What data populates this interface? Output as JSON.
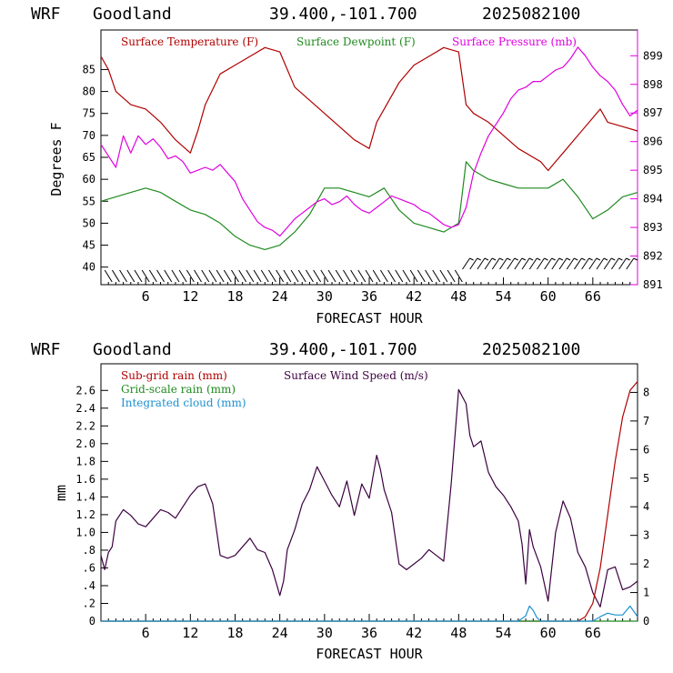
{
  "colors": {
    "temperature": "#b00000",
    "dewpoint": "#1e8a1e",
    "pressure": "#e000e0",
    "subgrid_rain": "#b00000",
    "grid_rain": "#1e8a1e",
    "cloud": "#1e90d0",
    "wind": "#3c0040",
    "axis": "#000000"
  },
  "chart_data": [
    {
      "type": "line",
      "header": {
        "model": "WRF",
        "site": "Goodland",
        "coords": "39.400,-101.700",
        "run": "2025082100"
      },
      "xlabel": "FORECAST HOUR",
      "ylabel": "Degrees F",
      "xlim": [
        0,
        72
      ],
      "xticks": [
        "6",
        "12",
        "18",
        "24",
        "30",
        "36",
        "42",
        "48",
        "54",
        "60",
        "66"
      ],
      "ylim": [
        36,
        94
      ],
      "yticks": [
        "40",
        "45",
        "50",
        "55",
        "60",
        "65",
        "70",
        "75",
        "80",
        "85"
      ],
      "y2lim": [
        891,
        899.9
      ],
      "y2ticks": [
        "891",
        "892",
        "893",
        "894",
        "895",
        "896",
        "897",
        "898",
        "899"
      ],
      "legend": [
        "Surface Temperature (F)",
        "Surface Dewpoint (F)",
        "Surface Pressure (mb)"
      ],
      "series": [
        {
          "name": "Surface Temperature (F)",
          "axis": "left",
          "x": [
            0,
            1,
            2,
            4,
            6,
            8,
            10,
            12,
            13,
            14,
            16,
            18,
            20,
            22,
            24,
            26,
            28,
            30,
            32,
            34,
            35,
            36,
            37,
            38,
            40,
            42,
            44,
            46,
            48,
            49,
            50,
            52,
            54,
            56,
            58,
            59,
            60,
            61,
            62,
            64,
            66,
            67,
            68,
            70,
            72
          ],
          "y": [
            88,
            85,
            80,
            77,
            76,
            73,
            69,
            66,
            71,
            77,
            84,
            86,
            88,
            90,
            89,
            81,
            78,
            75,
            72,
            69,
            68,
            67,
            73,
            76,
            82,
            86,
            88,
            90,
            89,
            77,
            75,
            73,
            70,
            67,
            65,
            64,
            62,
            64,
            66,
            70,
            74,
            76,
            73,
            72,
            71
          ]
        },
        {
          "name": "Surface Dewpoint (F)",
          "axis": "left",
          "x": [
            0,
            2,
            4,
            6,
            8,
            10,
            12,
            14,
            16,
            18,
            20,
            22,
            24,
            26,
            28,
            30,
            32,
            34,
            36,
            38,
            40,
            42,
            44,
            46,
            48,
            49,
            50,
            52,
            54,
            56,
            58,
            60,
            62,
            64,
            66,
            68,
            70,
            72
          ],
          "y": [
            55,
            56,
            57,
            58,
            57,
            55,
            53,
            52,
            50,
            47,
            45,
            44,
            45,
            48,
            52,
            58,
            58,
            57,
            56,
            58,
            53,
            50,
            49,
            48,
            50,
            64,
            62,
            60,
            59,
            58,
            58,
            58,
            60,
            56,
            51,
            53,
            56,
            57
          ]
        },
        {
          "name": "Surface Pressure (mb)",
          "axis": "right",
          "x": [
            0,
            1,
            2,
            3,
            4,
            5,
            6,
            7,
            8,
            9,
            10,
            11,
            12,
            13,
            14,
            15,
            16,
            17,
            18,
            19,
            20,
            21,
            22,
            23,
            24,
            25,
            26,
            27,
            28,
            29,
            30,
            31,
            32,
            33,
            34,
            35,
            36,
            37,
            38,
            39,
            40,
            41,
            42,
            43,
            44,
            45,
            46,
            47,
            48,
            49,
            50,
            51,
            52,
            53,
            54,
            55,
            56,
            57,
            58,
            59,
            60,
            61,
            62,
            63,
            64,
            65,
            66,
            67,
            68,
            69,
            70,
            71,
            72
          ],
          "y": [
            895.9,
            895.5,
            895.1,
            896.2,
            895.6,
            896.2,
            895.9,
            896.1,
            895.8,
            895.4,
            895.5,
            895.3,
            894.9,
            895.0,
            895.1,
            895.0,
            895.2,
            894.9,
            894.6,
            894.0,
            893.6,
            893.2,
            893.0,
            892.9,
            892.7,
            893.0,
            893.3,
            893.5,
            893.7,
            893.9,
            894.0,
            893.8,
            893.9,
            894.1,
            893.8,
            893.6,
            893.5,
            893.7,
            893.9,
            894.1,
            894.0,
            893.9,
            893.8,
            893.6,
            893.5,
            893.3,
            893.1,
            893.0,
            893.1,
            893.7,
            894.9,
            895.6,
            896.2,
            896.6,
            897.0,
            897.5,
            897.8,
            897.9,
            898.1,
            898.1,
            898.3,
            898.5,
            898.6,
            898.9,
            899.3,
            899.0,
            898.6,
            898.3,
            898.1,
            897.8,
            897.3,
            896.9,
            897.1
          ]
        }
      ]
    },
    {
      "type": "line",
      "header": {
        "model": "WRF",
        "site": "Goodland",
        "coords": "39.400,-101.700",
        "run": "2025082100"
      },
      "xlabel": "FORECAST HOUR",
      "ylabel": "mm",
      "xlim": [
        0,
        72
      ],
      "xticks": [
        "6",
        "12",
        "18",
        "24",
        "30",
        "36",
        "42",
        "48",
        "54",
        "60",
        "66"
      ],
      "ylim": [
        0,
        2.9
      ],
      "yticks": [
        "0",
        ".2",
        ".4",
        ".6",
        ".8",
        "1.0",
        "1.2",
        "1.4",
        "1.6",
        "1.8",
        "2.0",
        "2.2",
        "2.4",
        "2.6"
      ],
      "y2lim": [
        0,
        9
      ],
      "y2ticks": [
        "0",
        "1",
        "2",
        "3",
        "4",
        "5",
        "6",
        "7",
        "8"
      ],
      "legend": [
        "Sub-grid rain (mm)",
        "Grid-scale rain (mm)",
        "Integrated cloud (mm)",
        "Surface Wind Speed (m/s)"
      ],
      "series": [
        {
          "name": "Surface Wind Speed (m/s)",
          "axis": "right",
          "x": [
            0,
            0.5,
            1,
            1.5,
            2,
            3,
            4,
            5,
            6,
            7,
            8,
            9,
            10,
            11,
            12,
            13,
            14,
            15,
            16,
            17,
            18,
            19,
            20,
            21,
            22,
            23,
            24,
            24.5,
            25,
            26,
            27,
            28,
            29,
            30,
            31,
            32,
            33,
            34,
            35,
            36,
            37,
            37.5,
            38,
            39,
            40,
            41,
            42,
            43,
            44,
            45,
            46,
            47,
            48,
            49,
            49.5,
            50,
            51,
            52,
            53,
            54,
            55,
            56,
            56.5,
            57,
            57.5,
            58,
            59,
            60,
            61,
            62,
            63,
            64,
            65,
            66,
            67,
            68,
            69,
            70,
            71,
            72
          ],
          "y": [
            2.3,
            1.8,
            2.4,
            2.6,
            3.5,
            3.9,
            3.7,
            3.4,
            3.3,
            3.6,
            3.9,
            3.8,
            3.6,
            4.0,
            4.4,
            4.7,
            4.8,
            4.1,
            2.3,
            2.2,
            2.3,
            2.6,
            2.9,
            2.5,
            2.4,
            1.8,
            0.9,
            1.4,
            2.5,
            3.2,
            4.1,
            4.6,
            5.4,
            4.9,
            4.4,
            4.0,
            4.9,
            3.7,
            4.8,
            4.3,
            5.8,
            5.3,
            4.6,
            3.8,
            2.0,
            1.8,
            2.0,
            2.2,
            2.5,
            2.3,
            2.1,
            4.8,
            8.1,
            7.6,
            6.5,
            6.1,
            6.3,
            5.2,
            4.7,
            4.4,
            4.0,
            3.5,
            2.7,
            1.3,
            3.2,
            2.6,
            1.9,
            0.7,
            3.1,
            4.2,
            3.6,
            2.4,
            1.9,
            1.0,
            0.5,
            1.8,
            1.9,
            1.1,
            1.2,
            1.4
          ]
        },
        {
          "name": "Sub-grid rain (mm)",
          "axis": "left",
          "x": [
            0,
            64,
            65,
            66,
            67,
            68,
            69,
            70,
            71,
            72
          ],
          "y": [
            0,
            0,
            0.05,
            0.2,
            0.6,
            1.2,
            1.8,
            2.3,
            2.6,
            2.7
          ]
        },
        {
          "name": "Grid-scale rain (mm)",
          "axis": "left",
          "x": [
            0,
            72
          ],
          "y": [
            0,
            0
          ]
        },
        {
          "name": "Integrated cloud (mm)",
          "axis": "left",
          "x": [
            0,
            56,
            57,
            57.5,
            58,
            58.5,
            59,
            66,
            67,
            68,
            69,
            70,
            71,
            72
          ],
          "y": [
            0,
            0,
            0.06,
            0.17,
            0.12,
            0.04,
            0,
            0,
            0.05,
            0.09,
            0.07,
            0.07,
            0.17,
            0.05
          ]
        }
      ]
    }
  ]
}
